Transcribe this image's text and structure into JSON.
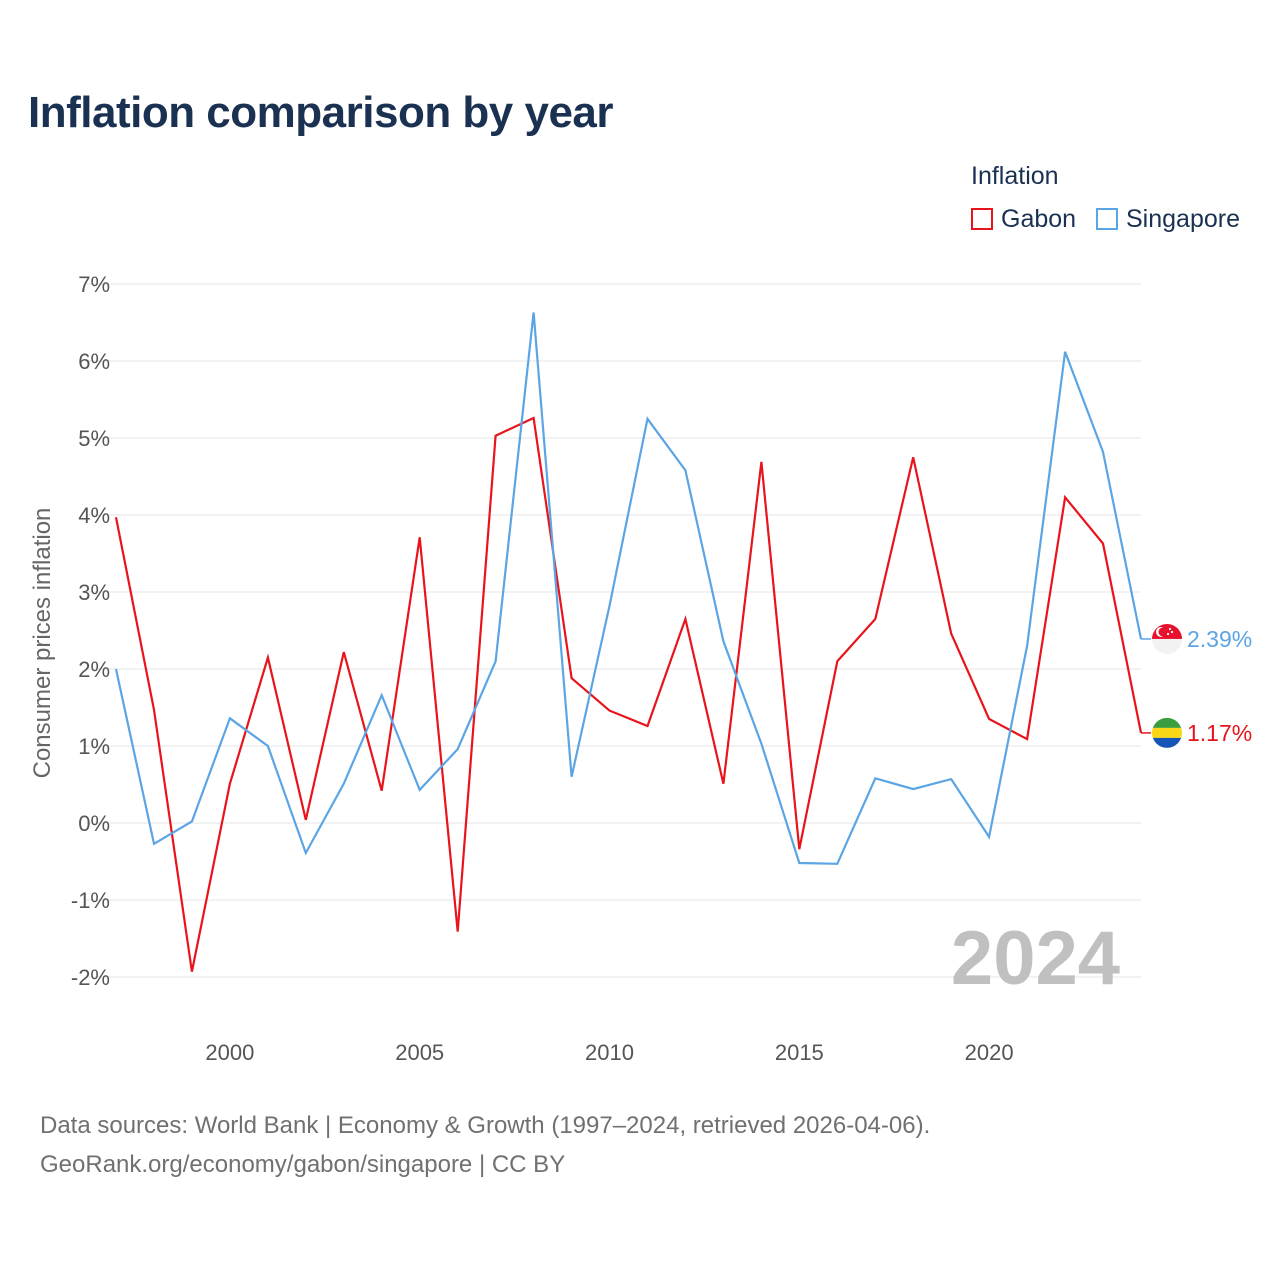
{
  "title": "Inflation comparison by year",
  "legend": {
    "title": "Inflation",
    "items": [
      {
        "label": "Gabon",
        "color": "#e8141b"
      },
      {
        "label": "Singapore",
        "color": "#5ba5e5"
      }
    ]
  },
  "footer": {
    "line1": "Data sources: World Bank | Economy & Growth (1997–2024, retrieved 2026-04-06).",
    "line2": "GeoRank.org/economy/gabon/singapore | CC BY"
  },
  "chart_data": {
    "type": "line",
    "title": "Inflation comparison by year",
    "xlabel": "",
    "ylabel": "Consumer prices inflation",
    "ylim": [
      -2,
      7
    ],
    "xlim": [
      1997,
      2024
    ],
    "grid": true,
    "legend_position": "top-right",
    "year_watermark": "2024",
    "x_ticks": [
      "2000",
      "2005",
      "2010",
      "2015",
      "2020"
    ],
    "y_ticks": [
      "-2%",
      "-1%",
      "0%",
      "1%",
      "2%",
      "3%",
      "4%",
      "5%",
      "6%",
      "7%"
    ],
    "x": [
      1997,
      1998,
      1999,
      2000,
      2001,
      2002,
      2003,
      2004,
      2005,
      2006,
      2007,
      2008,
      2009,
      2010,
      2011,
      2012,
      2013,
      2014,
      2015,
      2016,
      2017,
      2018,
      2019,
      2020,
      2021,
      2022,
      2023,
      2024
    ],
    "series": [
      {
        "name": "Gabon",
        "color": "#e8141b",
        "end_label": "1.17%",
        "flag": "gabon",
        "values": [
          3.97,
          1.47,
          -1.93,
          0.51,
          2.15,
          0.04,
          2.22,
          0.42,
          3.71,
          -1.41,
          5.03,
          5.26,
          1.88,
          1.46,
          1.26,
          2.65,
          0.51,
          4.69,
          -0.34,
          2.1,
          2.65,
          4.75,
          2.46,
          1.35,
          1.09,
          4.23,
          3.63,
          1.17
        ]
      },
      {
        "name": "Singapore",
        "color": "#5ba5e5",
        "end_label": "2.39%",
        "flag": "singapore",
        "values": [
          2.0,
          -0.27,
          0.02,
          1.36,
          1.0,
          -0.39,
          0.51,
          1.66,
          0.43,
          0.96,
          2.1,
          6.63,
          0.6,
          2.82,
          5.25,
          4.58,
          2.36,
          1.03,
          -0.52,
          -0.53,
          0.58,
          0.44,
          0.57,
          -0.18,
          2.3,
          6.12,
          4.82,
          2.39
        ]
      }
    ]
  }
}
